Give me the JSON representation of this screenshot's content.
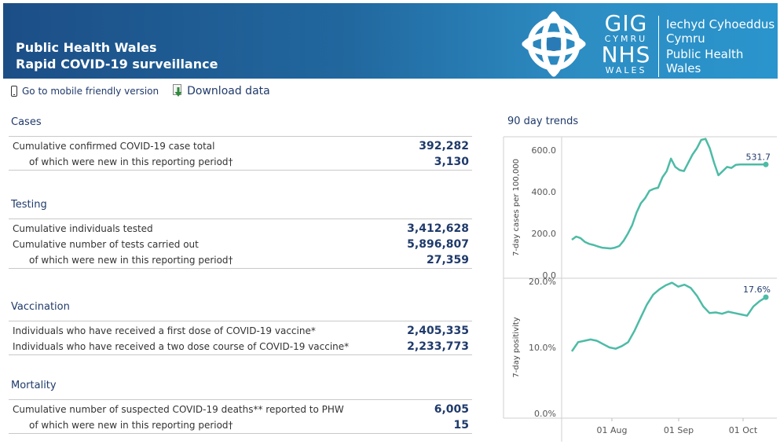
{
  "header": {
    "title_line1": "Public Health Wales",
    "title_line2": "Rapid COVID-19 surveillance",
    "logo_gig": "GIG",
    "logo_cymru": "CYMRU",
    "logo_nhs": "NHS",
    "logo_wales": "WALES",
    "org_line1": "Iechyd Cyhoeddus",
    "org_line2": "Cymru",
    "org_line3": "Public Health",
    "org_line4": "Wales"
  },
  "toolbar": {
    "mobile_label": "Go to mobile friendly version",
    "download_label": "Download data"
  },
  "sections": {
    "cases": {
      "title": "Cases",
      "rows": [
        {
          "label": "Cumulative confirmed COVID-19 case total",
          "value": "392,282"
        },
        {
          "label": "of which were new in this reporting period†",
          "value": "3,130"
        }
      ]
    },
    "testing": {
      "title": "Testing",
      "rows": [
        {
          "label": "Cumulative individuals tested",
          "value": "3,412,628"
        },
        {
          "label": "Cumulative number of tests carried out",
          "value": "5,896,807"
        },
        {
          "label": "of which were new in this reporting period†",
          "value": "27,359"
        }
      ]
    },
    "vaccination": {
      "title": "Vaccination",
      "rows": [
        {
          "label": "Individuals who have received a first dose of COVID-19 vaccine*",
          "value": "2,405,335"
        },
        {
          "label": "Individuals who have received a two dose course of COVID-19 vaccine*",
          "value": "2,233,773"
        }
      ]
    },
    "mortality": {
      "title": "Mortality",
      "rows": [
        {
          "label": "Cumulative number of suspected COVID-19 deaths** reported to PHW",
          "value": "6,005"
        },
        {
          "label": "of which were new in this reporting period†",
          "value": "15"
        }
      ]
    }
  },
  "trends": {
    "title": "90 day trends",
    "line_color": "#4dbba6",
    "label_color": "#1f3a6b"
  },
  "chart_data": [
    {
      "type": "line",
      "title": "",
      "ylabel": "7-day cases per 100,000",
      "ylim": [
        0,
        650
      ],
      "yticks": [
        0,
        200,
        400,
        600
      ],
      "ytick_labels": [
        "0.0",
        "200.0",
        "400.0",
        "600.0"
      ],
      "last_label": "531.7",
      "x_day_offsets": [
        0,
        2,
        4,
        6,
        8,
        10,
        12,
        14,
        16,
        18,
        20,
        22,
        24,
        26,
        28,
        30,
        32,
        34,
        36,
        38,
        40,
        42,
        44,
        46,
        48,
        50,
        52,
        54,
        56,
        58,
        60,
        62,
        64,
        66,
        68,
        70,
        72,
        74,
        76,
        78,
        80,
        82,
        84,
        86,
        88,
        90
      ],
      "values": [
        170,
        185,
        178,
        160,
        150,
        145,
        138,
        132,
        130,
        128,
        132,
        140,
        165,
        200,
        240,
        300,
        345,
        370,
        405,
        415,
        420,
        470,
        500,
        560,
        520,
        505,
        500,
        540,
        580,
        610,
        650,
        655,
        610,
        540,
        480,
        500,
        520,
        515,
        530,
        531.7,
        531.7,
        531.7,
        531.7,
        531.7,
        531.7,
        531.7
      ]
    },
    {
      "type": "line",
      "title": "",
      "ylabel": "7-day positivity",
      "ylim": [
        0,
        20
      ],
      "yticks": [
        0,
        10,
        20
      ],
      "ytick_labels": [
        "0.0%",
        "10.0%",
        "20.0%"
      ],
      "last_label": "17.6%"
    }
  ],
  "x_axis": {
    "tick_labels": [
      "01 Aug",
      "01 Sep",
      "01 Oct"
    ]
  }
}
